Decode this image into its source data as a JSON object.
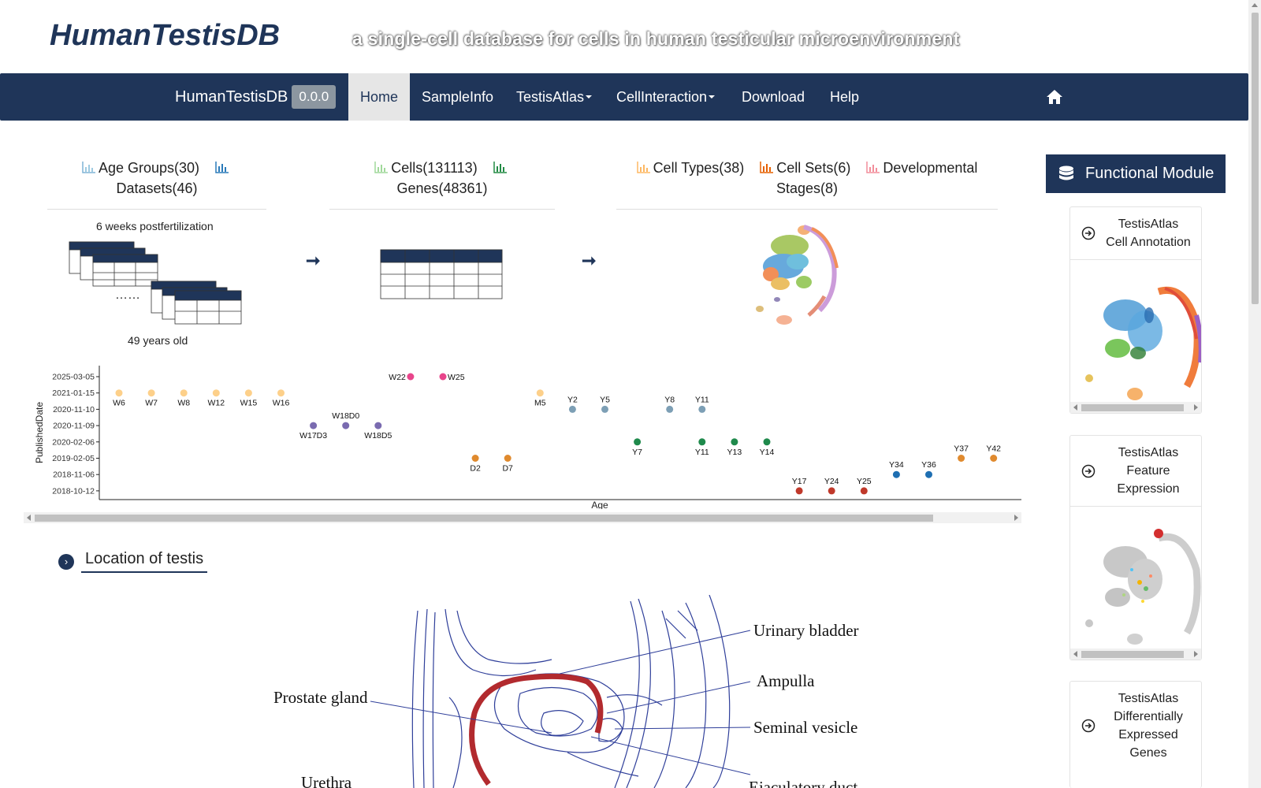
{
  "header": {
    "brand": "HumanTestisDB",
    "tagline": "a single-cell database for cells in human testicular microenvironment"
  },
  "navbar": {
    "brand": "HumanTestisDB",
    "version": "0.0.0",
    "items": [
      {
        "label": "Home",
        "active": true
      },
      {
        "label": "SampleInfo"
      },
      {
        "label": "TestisAtlas",
        "dropdown": true
      },
      {
        "label": "CellInteraction",
        "dropdown": true
      },
      {
        "label": "Download"
      },
      {
        "label": "Help"
      }
    ]
  },
  "stats": {
    "age_groups": "Age Groups(30)",
    "datasets": "Datasets(46)",
    "cells": "Cells(131113)",
    "genes": "Genes(48361)",
    "cell_types": "Cell Types(38)",
    "cell_sets": "Cell Sets(6)",
    "developmental": "Developmental",
    "stages": "Stages(8)"
  },
  "flow": {
    "top_caption": "6 weeks postfertilization",
    "ellipsis": "……",
    "bottom_caption": "49 years old",
    "arrow": "➞"
  },
  "chart_data": {
    "type": "scatter",
    "xlabel": "Age",
    "ylabel": "PublishedDate",
    "y_ticks": [
      "2025-03-05",
      "2021-01-15",
      "2020-11-10",
      "2020-11-09",
      "2020-02-06",
      "2019-02-05",
      "2018-11-06",
      "2018-10-12"
    ],
    "points": [
      {
        "label": "W6",
        "date": "2021-01-15",
        "color": "#fdd08a",
        "label_pos": "below"
      },
      {
        "label": "W7",
        "date": "2021-01-15",
        "color": "#fdd08a",
        "label_pos": "below"
      },
      {
        "label": "W8",
        "date": "2021-01-15",
        "color": "#fdd08a",
        "label_pos": "below"
      },
      {
        "label": "W12",
        "date": "2021-01-15",
        "color": "#fdd08a",
        "label_pos": "below"
      },
      {
        "label": "W15",
        "date": "2021-01-15",
        "color": "#fdd08a",
        "label_pos": "below"
      },
      {
        "label": "W16",
        "date": "2021-01-15",
        "color": "#fdd08a",
        "label_pos": "below"
      },
      {
        "label": "W17D3",
        "date": "2020-11-09",
        "color": "#7a6bb0",
        "label_pos": "below"
      },
      {
        "label": "W18D0",
        "date": "2020-11-09",
        "color": "#7a6bb0",
        "label_pos": "above"
      },
      {
        "label": "W18D5",
        "date": "2020-11-09",
        "color": "#7a6bb0",
        "label_pos": "below"
      },
      {
        "label": "W22",
        "date": "2025-03-05",
        "color": "#e8458b",
        "label_pos": "left"
      },
      {
        "label": "W25",
        "date": "2025-03-05",
        "color": "#e8458b",
        "label_pos": "right"
      },
      {
        "label": "D2",
        "date": "2019-02-05",
        "color": "#e08a2e",
        "label_pos": "below"
      },
      {
        "label": "D7",
        "date": "2019-02-05",
        "color": "#e08a2e",
        "label_pos": "below"
      },
      {
        "label": "M5",
        "date": "2021-01-15",
        "color": "#fdd08a",
        "label_pos": "below"
      },
      {
        "label": "Y2",
        "date": "2020-11-10",
        "color": "#7d9fb5",
        "label_pos": "above"
      },
      {
        "label": "Y5",
        "date": "2020-11-10",
        "color": "#7d9fb5",
        "label_pos": "above"
      },
      {
        "label": "Y7",
        "date": "2020-02-06",
        "color": "#1f8a4c",
        "label_pos": "below"
      },
      {
        "label": "Y8",
        "date": "2020-11-10",
        "color": "#7d9fb5",
        "label_pos": "above"
      },
      {
        "label": "Y11",
        "date": "2020-11-10",
        "color": "#7d9fb5",
        "label_pos": "above"
      },
      {
        "label": "Y11",
        "date": "2020-02-06",
        "color": "#1f8a4c",
        "label_pos": "below"
      },
      {
        "label": "Y13",
        "date": "2020-02-06",
        "color": "#1f8a4c",
        "label_pos": "below"
      },
      {
        "label": "Y14",
        "date": "2020-02-06",
        "color": "#1f8a4c",
        "label_pos": "below"
      },
      {
        "label": "Y17",
        "date": "2018-10-12",
        "color": "#c0392b",
        "label_pos": "above"
      },
      {
        "label": "Y24",
        "date": "2018-10-12",
        "color": "#c0392b",
        "label_pos": "above"
      },
      {
        "label": "Y25",
        "date": "2018-10-12",
        "color": "#c0392b",
        "label_pos": "above"
      },
      {
        "label": "Y34",
        "date": "2018-11-06",
        "color": "#1f6fb2",
        "label_pos": "above"
      },
      {
        "label": "Y36",
        "date": "2018-11-06",
        "color": "#1f6fb2",
        "label_pos": "above"
      },
      {
        "label": "Y37",
        "date": "2019-02-05",
        "color": "#e08a2e",
        "label_pos": "above"
      },
      {
        "label": "Y42",
        "date": "2019-02-05",
        "color": "#e08a2e",
        "label_pos": "above"
      }
    ]
  },
  "location": {
    "title": "Location of testis",
    "labels": {
      "urinary_bladder": "Urinary bladder",
      "ampulla": "Ampulla",
      "prostate_gland": "Prostate gland",
      "seminal_vesicle": "Seminal vesicle",
      "urethra": "Urethra",
      "ejaculatory_duct": "Ejaculatory duct"
    }
  },
  "sidebar": {
    "header": "Functional Module",
    "modules": [
      {
        "title_lines": [
          "TestisAtlas",
          "Cell Annotation"
        ]
      },
      {
        "title_lines": [
          "TestisAtlas",
          "Feature",
          "Expression"
        ]
      },
      {
        "title_lines": [
          "TestisAtlas",
          "Differentially",
          "Expressed",
          "Genes"
        ]
      }
    ]
  },
  "colors": {
    "navy": "#1f3559",
    "badge": "#8c96a0"
  }
}
